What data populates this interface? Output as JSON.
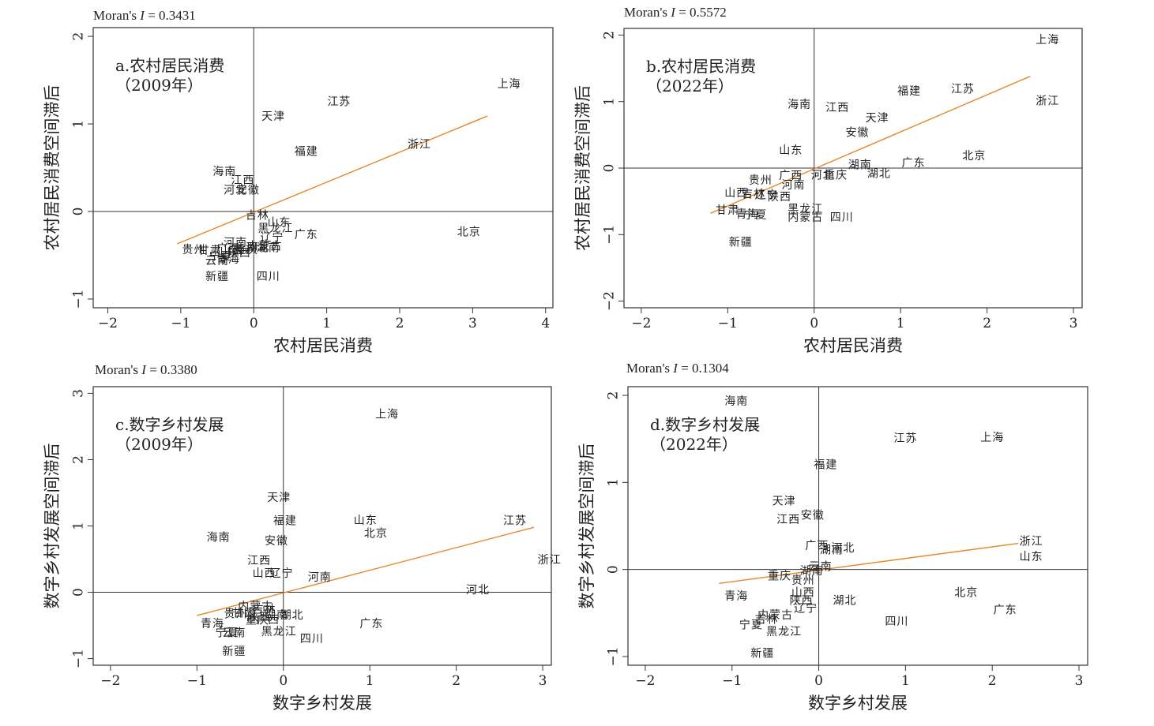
{
  "chart_data": [
    {
      "type": "scatter",
      "moran_prefix": "Moran's ",
      "moran_symbol": "I",
      "moran_value": " = 0.3431",
      "panel_label": "a.农村居民消费",
      "panel_year": "（2009年）",
      "xlabel": "农村居民消费",
      "ylabel": "农村居民消费空间滞后",
      "xlim": [
        -2.2,
        4.1
      ],
      "ylim": [
        -1.1,
        2.1
      ],
      "xticks": [
        -2,
        -1,
        0,
        1,
        2,
        3,
        4
      ],
      "yticks": [
        -1,
        0,
        1,
        2
      ],
      "fit_line": {
        "x": [
          -1.05,
          3.2
        ],
        "y": [
          -0.37,
          1.09
        ]
      },
      "points": [
        {
          "name": "上海",
          "x": 3.5,
          "y": 1.45
        },
        {
          "name": "江苏",
          "x": 1.17,
          "y": 1.25
        },
        {
          "name": "天津",
          "x": 0.27,
          "y": 1.08
        },
        {
          "name": "浙江",
          "x": 2.27,
          "y": 0.76
        },
        {
          "name": "福建",
          "x": 0.72,
          "y": 0.68
        },
        {
          "name": "海南",
          "x": -0.4,
          "y": 0.45
        },
        {
          "name": "江西",
          "x": -0.15,
          "y": 0.35
        },
        {
          "name": "河北",
          "x": -0.25,
          "y": 0.24
        },
        {
          "name": "安徽",
          "x": -0.08,
          "y": 0.24
        },
        {
          "name": "吉林",
          "x": 0.05,
          "y": -0.05
        },
        {
          "name": "山东",
          "x": 0.35,
          "y": -0.13
        },
        {
          "name": "黑龙江",
          "x": 0.3,
          "y": -0.2
        },
        {
          "name": "辽宁",
          "x": 0.25,
          "y": -0.3
        },
        {
          "name": "广东",
          "x": 0.72,
          "y": -0.27
        },
        {
          "name": "北京",
          "x": 2.95,
          "y": -0.24
        },
        {
          "name": "河南",
          "x": -0.25,
          "y": -0.36
        },
        {
          "name": "内蒙古",
          "x": 0.15,
          "y": -0.4
        },
        {
          "name": "湖南",
          "x": 0.2,
          "y": -0.42
        },
        {
          "name": "重庆",
          "x": -0.1,
          "y": -0.44
        },
        {
          "name": "湖北",
          "x": 0.05,
          "y": -0.42
        },
        {
          "name": "山西",
          "x": -0.3,
          "y": -0.45
        },
        {
          "name": "陕西",
          "x": -0.2,
          "y": -0.48
        },
        {
          "name": "广西",
          "x": -0.35,
          "y": -0.43
        },
        {
          "name": "贵州",
          "x": -0.82,
          "y": -0.44
        },
        {
          "name": "甘肃",
          "x": -0.6,
          "y": -0.45
        },
        {
          "name": "宁夏",
          "x": -0.45,
          "y": -0.52
        },
        {
          "name": "云南",
          "x": -0.5,
          "y": -0.57
        },
        {
          "name": "青海",
          "x": -0.35,
          "y": -0.55
        },
        {
          "name": "新疆",
          "x": -0.5,
          "y": -0.75
        },
        {
          "name": "四川",
          "x": 0.2,
          "y": -0.75
        }
      ]
    },
    {
      "type": "scatter",
      "moran_prefix": "Moran's ",
      "moran_symbol": "I",
      "moran_value": " = 0.5572",
      "panel_label": "b.农村居民消费",
      "panel_year": "（2022年）",
      "xlabel": "农村居民消费",
      "ylabel": "农村居民消费空间滞后",
      "xlim": [
        -2.2,
        3.1
      ],
      "ylim": [
        -2.1,
        2.1
      ],
      "xticks": [
        -2,
        -1,
        0,
        1,
        2,
        3
      ],
      "yticks": [
        -2,
        -1,
        0,
        1,
        2
      ],
      "fit_line": {
        "x": [
          -1.2,
          2.5
        ],
        "y": [
          -0.68,
          1.38
        ]
      },
      "points": [
        {
          "name": "上海",
          "x": 2.7,
          "y": 1.92
        },
        {
          "name": "福建",
          "x": 1.1,
          "y": 1.15
        },
        {
          "name": "江苏",
          "x": 1.72,
          "y": 1.18
        },
        {
          "name": "浙江",
          "x": 2.7,
          "y": 1.0
        },
        {
          "name": "海南",
          "x": -0.17,
          "y": 0.95
        },
        {
          "name": "江西",
          "x": 0.27,
          "y": 0.9
        },
        {
          "name": "天津",
          "x": 0.73,
          "y": 0.75
        },
        {
          "name": "安徽",
          "x": 0.5,
          "y": 0.53
        },
        {
          "name": "山东",
          "x": -0.27,
          "y": 0.26
        },
        {
          "name": "北京",
          "x": 1.85,
          "y": 0.18
        },
        {
          "name": "湖南",
          "x": 0.53,
          "y": 0.04
        },
        {
          "name": "广东",
          "x": 1.15,
          "y": 0.07
        },
        {
          "name": "湖北",
          "x": 0.75,
          "y": -0.09
        },
        {
          "name": "广西",
          "x": -0.27,
          "y": -0.12
        },
        {
          "name": "河北",
          "x": 0.1,
          "y": -0.11
        },
        {
          "name": "重庆",
          "x": 0.25,
          "y": -0.11
        },
        {
          "name": "贵州",
          "x": -0.62,
          "y": -0.19
        },
        {
          "name": "河南",
          "x": -0.24,
          "y": -0.26
        },
        {
          "name": "山西",
          "x": -0.9,
          "y": -0.38
        },
        {
          "name": "吉林",
          "x": -0.7,
          "y": -0.4
        },
        {
          "name": "辽宁",
          "x": -0.55,
          "y": -0.41
        },
        {
          "name": "陕西",
          "x": -0.4,
          "y": -0.44
        },
        {
          "name": "甘肃",
          "x": -1.0,
          "y": -0.64
        },
        {
          "name": "青海",
          "x": -0.77,
          "y": -0.7
        },
        {
          "name": "宁夏",
          "x": -0.68,
          "y": -0.71
        },
        {
          "name": "黑龙江",
          "x": -0.1,
          "y": -0.62
        },
        {
          "name": "内蒙古",
          "x": -0.1,
          "y": -0.75
        },
        {
          "name": "四川",
          "x": 0.32,
          "y": -0.75
        },
        {
          "name": "新疆",
          "x": -0.85,
          "y": -1.12
        }
      ]
    },
    {
      "type": "scatter",
      "moran_prefix": "Moran's ",
      "moran_symbol": "I",
      "moran_value": " = 0.3380",
      "panel_label": "c.数字乡村发展",
      "panel_year": "（2009年）",
      "xlabel": "数字乡村发展",
      "ylabel": "数字乡村发展空间滞后",
      "xlim": [
        -2.2,
        3.1
      ],
      "ylim": [
        -1.1,
        3.1
      ],
      "xticks": [
        -2,
        -1,
        0,
        1,
        2,
        3
      ],
      "yticks": [
        -1,
        0,
        1,
        2,
        3
      ],
      "fit_line": {
        "x": [
          -1.0,
          2.9
        ],
        "y": [
          -0.35,
          0.98
        ]
      },
      "points": [
        {
          "name": "上海",
          "x": 1.2,
          "y": 2.68
        },
        {
          "name": "天津",
          "x": -0.05,
          "y": 1.42
        },
        {
          "name": "福建",
          "x": 0.02,
          "y": 1.07
        },
        {
          "name": "山东",
          "x": 0.95,
          "y": 1.08
        },
        {
          "name": "江苏",
          "x": 2.68,
          "y": 1.07
        },
        {
          "name": "北京",
          "x": 1.07,
          "y": 0.88
        },
        {
          "name": "海南",
          "x": -0.75,
          "y": 0.82
        },
        {
          "name": "安徽",
          "x": -0.08,
          "y": 0.77
        },
        {
          "name": "浙江",
          "x": 3.08,
          "y": 0.48
        },
        {
          "name": "江西",
          "x": -0.28,
          "y": 0.47
        },
        {
          "name": "山西",
          "x": -0.22,
          "y": 0.28
        },
        {
          "name": "辽宁",
          "x": -0.02,
          "y": 0.28
        },
        {
          "name": "河南",
          "x": 0.42,
          "y": 0.22
        },
        {
          "name": "河北",
          "x": 2.25,
          "y": 0.03
        },
        {
          "name": "内蒙古",
          "x": -0.32,
          "y": -0.22
        },
        {
          "name": "吉林",
          "x": -0.22,
          "y": -0.27
        },
        {
          "name": "贵州",
          "x": -0.55,
          "y": -0.33
        },
        {
          "name": "甘肃",
          "x": -0.45,
          "y": -0.32
        },
        {
          "name": "陕西",
          "x": -0.28,
          "y": -0.38
        },
        {
          "name": "湖南",
          "x": -0.08,
          "y": -0.35
        },
        {
          "name": "湖北",
          "x": 0.1,
          "y": -0.35
        },
        {
          "name": "重庆",
          "x": -0.3,
          "y": -0.43
        },
        {
          "name": "广西",
          "x": -0.18,
          "y": -0.42
        },
        {
          "name": "青海",
          "x": -0.82,
          "y": -0.48
        },
        {
          "name": "宁夏",
          "x": -0.65,
          "y": -0.62
        },
        {
          "name": "云南",
          "x": -0.57,
          "y": -0.62
        },
        {
          "name": "黑龙江",
          "x": -0.05,
          "y": -0.6
        },
        {
          "name": "广东",
          "x": 1.02,
          "y": -0.48
        },
        {
          "name": "四川",
          "x": 0.33,
          "y": -0.71
        },
        {
          "name": "新疆",
          "x": -0.57,
          "y": -0.9
        }
      ]
    },
    {
      "type": "scatter",
      "moran_prefix": "Moran's ",
      "moran_symbol": "I",
      "moran_value": " = 0.1304",
      "panel_label": "d.数字乡村发展",
      "panel_year": "（2022年）",
      "xlabel": "数字乡村发展",
      "ylabel": "数字乡村发展空间滞后",
      "xlim": [
        -2.2,
        3.1
      ],
      "ylim": [
        -1.1,
        2.1
      ],
      "xticks": [
        -2,
        -1,
        0,
        1,
        2,
        3
      ],
      "yticks": [
        -1,
        0,
        1,
        2
      ],
      "fit_line": {
        "x": [
          -1.15,
          2.3
        ],
        "y": [
          -0.16,
          0.3
        ]
      },
      "points": [
        {
          "name": "海南",
          "x": -0.95,
          "y": 1.93
        },
        {
          "name": "江苏",
          "x": 1.0,
          "y": 1.5
        },
        {
          "name": "上海",
          "x": 2.0,
          "y": 1.51
        },
        {
          "name": "福建",
          "x": 0.08,
          "y": 1.2
        },
        {
          "name": "天津",
          "x": -0.4,
          "y": 0.78
        },
        {
          "name": "安徽",
          "x": -0.07,
          "y": 0.62
        },
        {
          "name": "江西",
          "x": -0.35,
          "y": 0.57
        },
        {
          "name": "广西",
          "x": -0.02,
          "y": 0.27
        },
        {
          "name": "河北",
          "x": 0.28,
          "y": 0.24
        },
        {
          "name": "湖南",
          "x": 0.15,
          "y": 0.22
        },
        {
          "name": "浙江",
          "x": 2.45,
          "y": 0.32
        },
        {
          "name": "山东",
          "x": 2.45,
          "y": 0.14
        },
        {
          "name": "云南",
          "x": 0.02,
          "y": 0.03
        },
        {
          "name": "湖南",
          "x": -0.08,
          "y": -0.02
        },
        {
          "name": "重庆",
          "x": -0.45,
          "y": -0.08
        },
        {
          "name": "贵州",
          "x": -0.18,
          "y": -0.13
        },
        {
          "name": "北京",
          "x": 1.7,
          "y": -0.27
        },
        {
          "name": "山西",
          "x": -0.18,
          "y": -0.27
        },
        {
          "name": "陕西",
          "x": -0.2,
          "y": -0.36
        },
        {
          "name": "湖北",
          "x": 0.3,
          "y": -0.36
        },
        {
          "name": "青海",
          "x": -0.95,
          "y": -0.31
        },
        {
          "name": "辽宁",
          "x": -0.15,
          "y": -0.45
        },
        {
          "name": "内蒙古",
          "x": -0.5,
          "y": -0.53
        },
        {
          "name": "吉林",
          "x": -0.6,
          "y": -0.58
        },
        {
          "name": "宁夏",
          "x": -0.78,
          "y": -0.64
        },
        {
          "name": "广东",
          "x": 2.15,
          "y": -0.47
        },
        {
          "name": "四川",
          "x": 0.9,
          "y": -0.6
        },
        {
          "name": "黑龙江",
          "x": -0.4,
          "y": -0.72
        },
        {
          "name": "新疆",
          "x": -0.65,
          "y": -0.97
        }
      ]
    }
  ]
}
